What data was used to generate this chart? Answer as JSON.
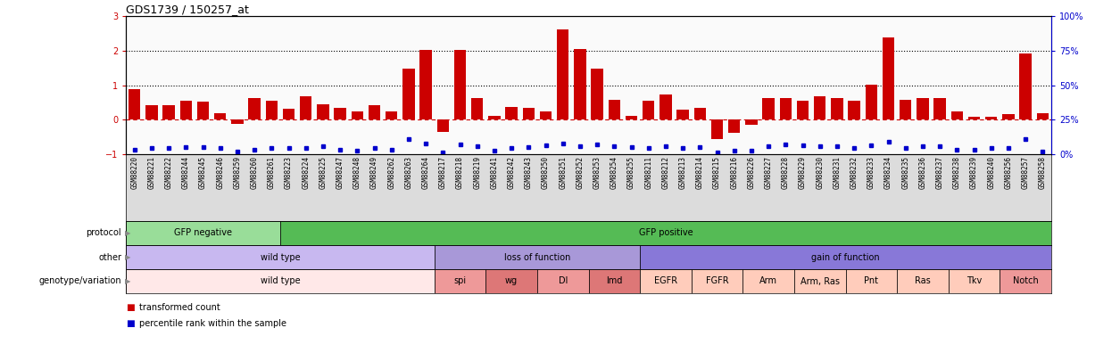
{
  "title": "GDS1739 / 150257_at",
  "gsm_labels": [
    "GSM88220",
    "GSM88221",
    "GSM88222",
    "GSM88244",
    "GSM88245",
    "GSM88246",
    "GSM88259",
    "GSM88260",
    "GSM88261",
    "GSM88223",
    "GSM88224",
    "GSM88225",
    "GSM88247",
    "GSM88248",
    "GSM88249",
    "GSM88262",
    "GSM88263",
    "GSM88264",
    "GSM88217",
    "GSM88218",
    "GSM88219",
    "GSM88241",
    "GSM88242",
    "GSM88243",
    "GSM88250",
    "GSM88251",
    "GSM88252",
    "GSM88253",
    "GSM88254",
    "GSM88255",
    "GSM88211",
    "GSM88212",
    "GSM88213",
    "GSM88214",
    "GSM88215",
    "GSM88216",
    "GSM88226",
    "GSM88227",
    "GSM88228",
    "GSM88229",
    "GSM88230",
    "GSM88231",
    "GSM88232",
    "GSM88233",
    "GSM88234",
    "GSM88235",
    "GSM88236",
    "GSM88237",
    "GSM88238",
    "GSM88239",
    "GSM88240",
    "GSM88256",
    "GSM88257",
    "GSM88258"
  ],
  "bar_values": [
    0.88,
    0.42,
    0.42,
    0.55,
    0.52,
    0.18,
    -0.12,
    0.62,
    0.55,
    0.32,
    0.68,
    0.45,
    0.35,
    0.25,
    0.42,
    0.25,
    1.48,
    2.02,
    -0.35,
    2.02,
    0.62,
    0.12,
    0.38,
    0.35,
    0.25,
    2.62,
    2.05,
    1.48,
    0.58,
    0.12,
    0.55,
    0.72,
    0.28,
    0.35,
    -0.55,
    -0.38,
    -0.15,
    0.62,
    0.62,
    0.55,
    0.68,
    0.62,
    0.55,
    1.02,
    2.38,
    0.58,
    0.62,
    0.62,
    0.25,
    0.08,
    0.08,
    0.15,
    1.92,
    0.18
  ],
  "percentile_values": [
    -0.88,
    -0.82,
    -0.82,
    -0.8,
    -0.8,
    -0.82,
    -0.92,
    -0.88,
    -0.82,
    -0.82,
    -0.82,
    -0.78,
    -0.88,
    -0.9,
    -0.82,
    -0.88,
    -0.55,
    -0.68,
    -0.95,
    -0.72,
    -0.78,
    -0.9,
    -0.82,
    -0.8,
    -0.75,
    -0.68,
    -0.78,
    -0.72,
    -0.78,
    -0.8,
    -0.82,
    -0.78,
    -0.82,
    -0.8,
    -0.95,
    -0.9,
    -0.9,
    -0.78,
    -0.72,
    -0.75,
    -0.78,
    -0.78,
    -0.82,
    -0.75,
    -0.65,
    -0.82,
    -0.78,
    -0.78,
    -0.88,
    -0.88,
    -0.82,
    -0.82,
    -0.55,
    -0.92
  ],
  "protocol_groups": [
    {
      "label": "GFP negative",
      "start": 0,
      "end": 9,
      "color": "#99DD99"
    },
    {
      "label": "GFP positive",
      "start": 9,
      "end": 54,
      "color": "#55BB55"
    }
  ],
  "other_groups": [
    {
      "label": "wild type",
      "start": 0,
      "end": 18,
      "color": "#C8B8F0"
    },
    {
      "label": "loss of function",
      "start": 18,
      "end": 30,
      "color": "#A898D8"
    },
    {
      "label": "gain of function",
      "start": 30,
      "end": 54,
      "color": "#8878D8"
    }
  ],
  "genotype_groups": [
    {
      "label": "wild type",
      "start": 0,
      "end": 18,
      "color": "#FFE8E8"
    },
    {
      "label": "spi",
      "start": 18,
      "end": 21,
      "color": "#EE9999"
    },
    {
      "label": "wg",
      "start": 21,
      "end": 24,
      "color": "#DD7777"
    },
    {
      "label": "Dl",
      "start": 24,
      "end": 27,
      "color": "#EE9999"
    },
    {
      "label": "lmd",
      "start": 27,
      "end": 30,
      "color": "#DD7777"
    },
    {
      "label": "EGFR",
      "start": 30,
      "end": 33,
      "color": "#FFCCBB"
    },
    {
      "label": "FGFR",
      "start": 33,
      "end": 36,
      "color": "#FFCCBB"
    },
    {
      "label": "Arm",
      "start": 36,
      "end": 39,
      "color": "#FFCCBB"
    },
    {
      "label": "Arm, Ras",
      "start": 39,
      "end": 42,
      "color": "#FFCCBB"
    },
    {
      "label": "Pnt",
      "start": 42,
      "end": 45,
      "color": "#FFCCBB"
    },
    {
      "label": "Ras",
      "start": 45,
      "end": 48,
      "color": "#FFCCBB"
    },
    {
      "label": "Tkv",
      "start": 48,
      "end": 51,
      "color": "#FFCCBB"
    },
    {
      "label": "Notch",
      "start": 51,
      "end": 54,
      "color": "#EE9999"
    }
  ],
  "ylim": [
    -1.0,
    3.0
  ],
  "bar_color": "#CC0000",
  "percentile_color": "#0000CC",
  "hline_color": "#CC0000",
  "dotted_line_y": [
    1.0,
    2.0
  ],
  "background_color": "#FAFAFA",
  "gsm_bg_color": "#DCDCDC",
  "title_fontsize": 9,
  "label_fontsize": 5.5,
  "annot_fontsize": 7,
  "left_labels": [
    "protocol",
    "other",
    "genotype/variation"
  ]
}
